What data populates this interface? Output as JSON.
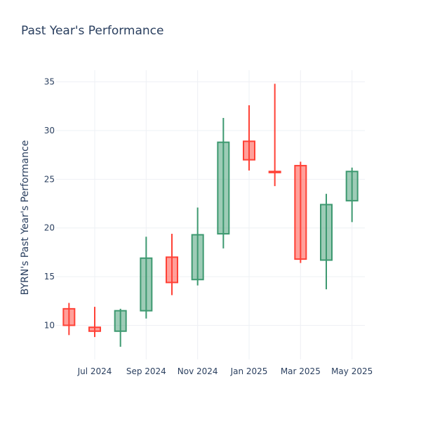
{
  "chart_data": {
    "type": "candlestick",
    "title": "Past Year's Performance",
    "xlabel": "",
    "ylabel": "BYRN's Past Year's Performance",
    "ylim": [
      6.5,
      36.2
    ],
    "yticks": [
      10,
      15,
      20,
      25,
      30,
      35
    ],
    "xticks": [
      {
        "label": "Jul 2024",
        "x": 1
      },
      {
        "label": "Sep 2024",
        "x": 3
      },
      {
        "label": "Nov 2024",
        "x": 5
      },
      {
        "label": "Jan 2025",
        "x": 7
      },
      {
        "label": "Mar 2025",
        "x": 9
      },
      {
        "label": "May 2025",
        "x": 11
      }
    ],
    "grid": true,
    "colors": {
      "increasing": "#3D9970",
      "decreasing": "#FF4136"
    },
    "candles": [
      {
        "x": 0,
        "open": 11.7,
        "high": 12.3,
        "low": 9.0,
        "close": 10.0
      },
      {
        "x": 1,
        "open": 9.8,
        "high": 11.9,
        "low": 8.8,
        "close": 9.4
      },
      {
        "x": 2,
        "open": 9.4,
        "high": 11.7,
        "low": 7.8,
        "close": 11.5
      },
      {
        "x": 3,
        "open": 11.5,
        "high": 19.1,
        "low": 10.7,
        "close": 16.9
      },
      {
        "x": 4,
        "open": 17.0,
        "high": 19.4,
        "low": 13.1,
        "close": 14.4
      },
      {
        "x": 5,
        "open": 14.7,
        "high": 22.1,
        "low": 14.1,
        "close": 19.3
      },
      {
        "x": 6,
        "open": 19.4,
        "high": 31.3,
        "low": 17.9,
        "close": 28.8
      },
      {
        "x": 7,
        "open": 28.9,
        "high": 32.6,
        "low": 25.9,
        "close": 27.0
      },
      {
        "x": 8,
        "open": 25.8,
        "high": 34.8,
        "low": 24.3,
        "close": 25.7
      },
      {
        "x": 9,
        "open": 26.4,
        "high": 26.8,
        "low": 16.4,
        "close": 16.8
      },
      {
        "x": 10,
        "open": 16.7,
        "high": 23.5,
        "low": 13.7,
        "close": 22.4
      },
      {
        "x": 11,
        "open": 22.8,
        "high": 26.2,
        "low": 20.6,
        "close": 25.8
      }
    ]
  }
}
